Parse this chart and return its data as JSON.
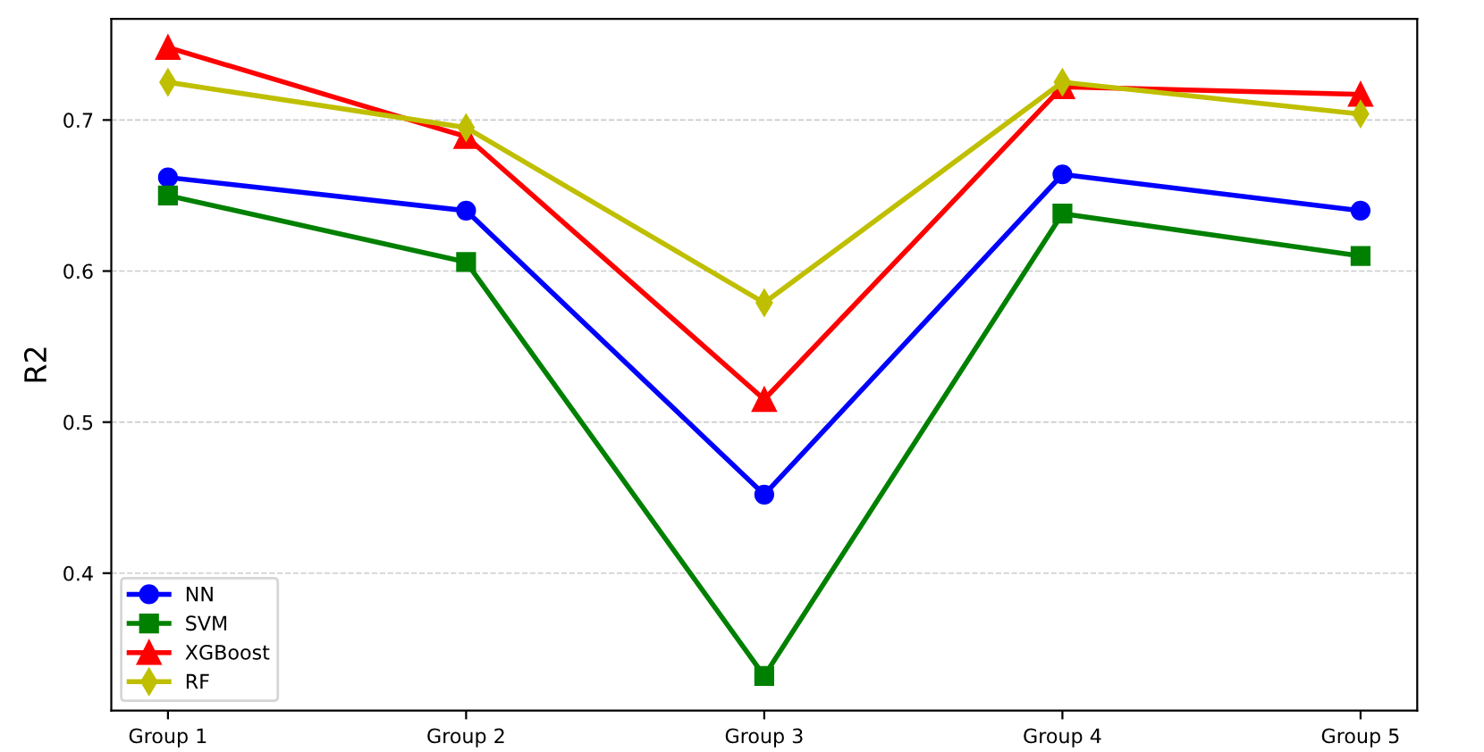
{
  "chart_data": {
    "type": "line",
    "ylabel": "R2",
    "categories": [
      "Group 1",
      "Group 2",
      "Group 3",
      "Group 4",
      "Group 5"
    ],
    "series": [
      {
        "name": "NN",
        "color": "#0000ff",
        "marker": "circle",
        "values": [
          0.662,
          0.64,
          0.452,
          0.664,
          0.64
        ]
      },
      {
        "name": "SVM",
        "color": "#008000",
        "marker": "square",
        "values": [
          0.65,
          0.606,
          0.332,
          0.638,
          0.61
        ]
      },
      {
        "name": "XGBoost",
        "color": "#ff0000",
        "marker": "triangle",
        "values": [
          0.748,
          0.689,
          0.515,
          0.722,
          0.717
        ]
      },
      {
        "name": "RF",
        "color": "#bfbf00",
        "marker": "diamond",
        "values": [
          0.725,
          0.695,
          0.579,
          0.725,
          0.704
        ]
      }
    ],
    "ylim": [
      0.309,
      0.767
    ],
    "yticks": [
      0.4,
      0.5,
      0.6,
      0.7
    ],
    "grid": "y",
    "legend": "bottom left",
    "line_style": "solid"
  }
}
